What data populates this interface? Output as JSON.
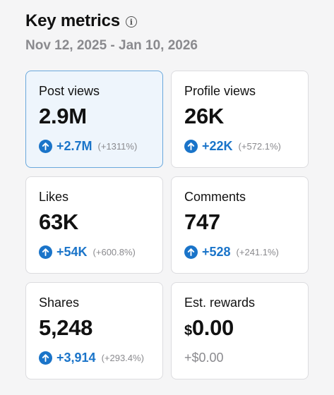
{
  "header": {
    "title": "Key metrics",
    "info_icon": "info-icon",
    "date_range": "Nov 12, 2025 - Jan 10, 2026"
  },
  "colors": {
    "accent": "#1a74c9",
    "selected_bg": "#eef5fc",
    "selected_border": "#6aa8dc",
    "muted": "#8a8a8e"
  },
  "metrics": [
    {
      "label": "Post views",
      "value": "2.9M",
      "delta": "+2.7M",
      "pct": "(+1311%)",
      "icon": "arrow-up-icon"
    },
    {
      "label": "Profile views",
      "value": "26K",
      "delta": "+22K",
      "pct": "(+572.1%)",
      "icon": "arrow-up-icon"
    },
    {
      "label": "Likes",
      "value": "63K",
      "delta": "+54K",
      "pct": "(+600.8%)",
      "icon": "arrow-up-icon"
    },
    {
      "label": "Comments",
      "value": "747",
      "delta": "+528",
      "pct": "(+241.1%)",
      "icon": "arrow-up-icon"
    },
    {
      "label": "Shares",
      "value": "5,248",
      "delta": "+3,914",
      "pct": "(+293.4%)",
      "icon": "arrow-up-icon"
    },
    {
      "label": "Est. rewards",
      "currency": "$",
      "value": "0.00",
      "delta": "+$0.00"
    }
  ]
}
